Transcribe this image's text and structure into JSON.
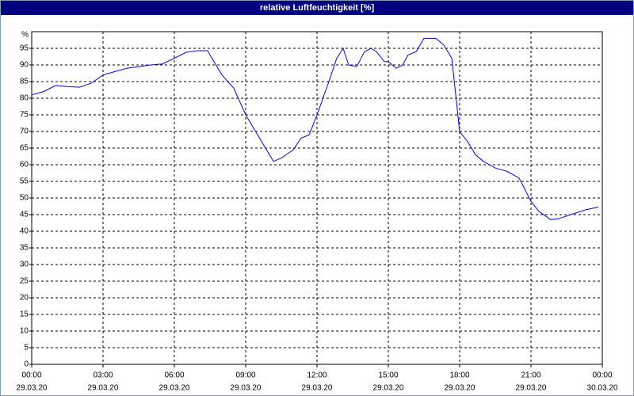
{
  "chart_data": {
    "type": "line",
    "title": "relative Luftfeuchtigkeit [%]",
    "y_label": "%",
    "x": [
      0,
      0.5,
      1,
      1.5,
      2,
      2.5,
      3,
      3.5,
      4,
      4.5,
      5,
      5.5,
      6,
      6.5,
      7,
      7.4,
      7.5,
      8,
      8.5,
      9,
      9.5,
      10.17,
      10.5,
      11,
      11.33,
      11.67,
      12,
      12.5,
      12.83,
      13.1,
      13.33,
      13.67,
      14,
      14.27,
      14.5,
      14.83,
      15,
      15.33,
      15.6,
      15.83,
      16.17,
      16.5,
      17,
      17.33,
      17.67,
      18,
      18.33,
      18.67,
      19,
      19.5,
      20,
      20.5,
      21,
      21.33,
      21.83,
      22.17,
      22.67,
      23.33,
      23.83
    ],
    "series": [
      {
        "name": "relative Luftfeuchtigkeit",
        "color": "#0000ff",
        "values": [
          81,
          82,
          83.8,
          83.5,
          83.3,
          84.5,
          87,
          88,
          89,
          89.5,
          90,
          90.3,
          92,
          93.8,
          94.3,
          94.3,
          93,
          87,
          83,
          75,
          69,
          61,
          62,
          64.5,
          68,
          69,
          75,
          85,
          92,
          95,
          90,
          89.5,
          94,
          95,
          94,
          91,
          91,
          89,
          90,
          93,
          94,
          98,
          98,
          96,
          92,
          70,
          67,
          63,
          61,
          59,
          58,
          56,
          49,
          46,
          43.5,
          43.8,
          45,
          46.5,
          47.3
        ]
      }
    ],
    "xlim": [
      0,
      24
    ],
    "xticks": [
      {
        "value": 0,
        "label": "00:00",
        "date": "29.03.20"
      },
      {
        "value": 3,
        "label": "03:00",
        "date": "29.03.20"
      },
      {
        "value": 6,
        "label": "06:00",
        "date": "29.03.20"
      },
      {
        "value": 9,
        "label": "09:00",
        "date": "29.03.20"
      },
      {
        "value": 12,
        "label": "12:00",
        "date": "29.03.20"
      },
      {
        "value": 15,
        "label": "15:00",
        "date": "29.03.20"
      },
      {
        "value": 18,
        "label": "18:00",
        "date": "29.03.20"
      },
      {
        "value": 21,
        "label": "21:00",
        "date": "29.03.20"
      },
      {
        "value": 24,
        "label": "00:00",
        "date": "30.03.20"
      }
    ],
    "ylim": [
      0,
      100
    ],
    "yticks": [
      0,
      5,
      10,
      15,
      20,
      25,
      30,
      35,
      40,
      45,
      50,
      55,
      60,
      65,
      70,
      75,
      80,
      85,
      90,
      95
    ],
    "grid": true
  }
}
